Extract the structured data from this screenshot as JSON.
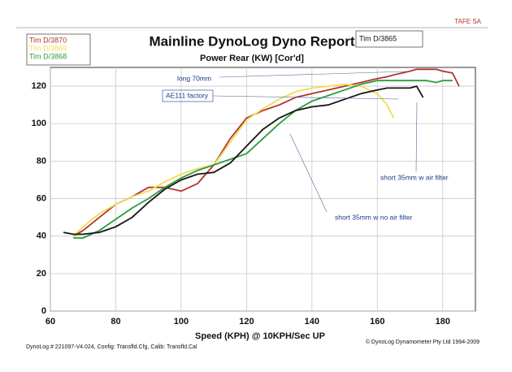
{
  "chart_data": {
    "type": "line",
    "title": "Mainline DynoLog Dyno Report",
    "subtitle": "Power Rear (KW) [Cor'd]",
    "x_label": "Speed (KPH) @ 10KPH/Sec UP",
    "header": "TAFE SA",
    "footer_left": "DynoLog # 221097-V4.024, Config: Transfld.Cfg, Calib: Transfld.Cal",
    "footer_right": "© DynoLog Dynamometer Pty Ltd 1994-2009",
    "annotations": [
      "long 70mm",
      "AE111 factory",
      "short 35mm w air filter",
      "short 35mm w no air filter"
    ],
    "x": [
      64,
      67,
      70,
      75,
      80,
      85,
      90,
      95,
      100,
      105,
      110,
      115,
      120,
      125,
      130,
      135,
      140,
      145,
      150,
      155,
      160,
      163,
      165,
      170,
      172,
      174,
      175,
      178,
      180,
      183,
      185
    ],
    "series": [
      {
        "name": "Tim D/3870",
        "color": "#b0352b",
        "values": [
          null,
          40,
          43,
          50,
          57,
          61,
          66,
          66,
          64,
          68,
          78,
          92,
          103,
          107,
          110,
          114,
          116,
          118,
          120,
          122,
          124,
          125,
          126,
          128,
          129,
          129,
          129,
          129,
          128,
          127,
          120
        ]
      },
      {
        "name": "Tim D/3869",
        "color": "#f2dc55",
        "values": [
          null,
          40,
          45,
          52,
          57,
          61,
          64,
          69,
          73,
          76,
          78,
          90,
          102,
          108,
          113,
          117,
          119,
          120,
          121,
          120,
          116,
          110,
          103,
          null,
          null,
          null,
          null,
          null,
          null,
          null,
          null
        ]
      },
      {
        "name": "Tim D/3868",
        "color": "#2e9a3c",
        "values": [
          null,
          39,
          39,
          43,
          49,
          55,
          60,
          66,
          71,
          75,
          78,
          81,
          84,
          92,
          100,
          107,
          112,
          115,
          118,
          121,
          123,
          123,
          123,
          123,
          123,
          123,
          123,
          122,
          123,
          123,
          null
        ]
      },
      {
        "name": "Tim D/3865",
        "color": "#151515",
        "values": [
          42,
          41,
          41,
          42,
          45,
          50,
          58,
          65,
          70,
          73,
          74,
          79,
          88,
          97,
          103,
          107,
          109,
          110,
          113,
          116,
          118,
          119,
          119,
          119,
          120,
          114,
          null,
          null,
          null,
          null,
          null
        ]
      }
    ],
    "xlim": [
      60,
      190
    ],
    "xticks": [
      60,
      80,
      100,
      120,
      140,
      160,
      180
    ],
    "ylim": [
      0,
      130
    ],
    "yticks": [
      0,
      20,
      40,
      60,
      80,
      100,
      120
    ],
    "grid": true
  }
}
